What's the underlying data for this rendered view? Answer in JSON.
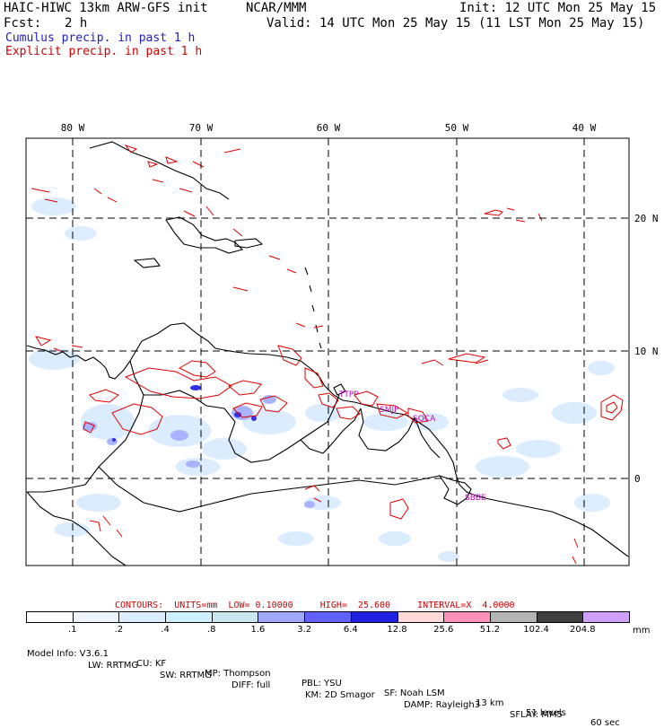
{
  "header": {
    "model_title": "HAIC-HIWC 13km ARW-GFS init",
    "org": "NCAR/MMM",
    "init": "Init: 12 UTC Mon 25 May 15",
    "fcst_label": "Fcst:",
    "fcst_value": "2 h",
    "valid": "Valid: 14 UTC Mon 25 May 15 (11 LST Mon 25 May 15)",
    "legend_cumulus": "Cumulus precip. in past 1 h",
    "legend_explicit": "Explicit precip. in past 1 h"
  },
  "map": {
    "lon_labels": [
      "80 W",
      "70 W",
      "60 W",
      "50 W",
      "40 W"
    ],
    "lat_labels": [
      "20 N",
      "10 N",
      "0"
    ],
    "stations": [
      "TTPP",
      "SMJP",
      "SOCA",
      "SBBE"
    ],
    "colors": {
      "explicit_contour": "#e00000",
      "cumulus_label": "#2020c0",
      "station": "#c000c0"
    }
  },
  "contours": {
    "text": "CONTOURS:  UNITS=mm  LOW= 0.10000     HIGH=  25.600     INTERVAL=X  4.0000"
  },
  "colorbar": {
    "unit": "mm",
    "labels": [
      ".1",
      ".2",
      ".4",
      ".8",
      "1.6",
      "3.2",
      "6.4",
      "12.8",
      "25.6",
      "51.2",
      "102.4",
      "204.8"
    ],
    "colors": [
      "#ffffff",
      "#eef5ff",
      "#dceeff",
      "#ccf0ff",
      "#c8e8f0",
      "#a0a8ff",
      "#6060ff",
      "#2020e0",
      "#ffd8d8",
      "#ff90b8",
      "#b4b4b4",
      "#404040",
      "#d0a0ff"
    ]
  },
  "footer": {
    "line1": [
      "Model Info: V3.6.1",
      "CU: KF",
      "MP: Thompson",
      "PBL: YSU",
      "SF: Noah LSM",
      "13 km",
      "51 levels",
      "60 sec"
    ],
    "line2": [
      "LW: RRTMG",
      "SW: RRTMG",
      "DIFF: full",
      "KM: 2D Smagor",
      "DAMP: Rayleigh3",
      "SFLAY: MM5"
    ]
  }
}
